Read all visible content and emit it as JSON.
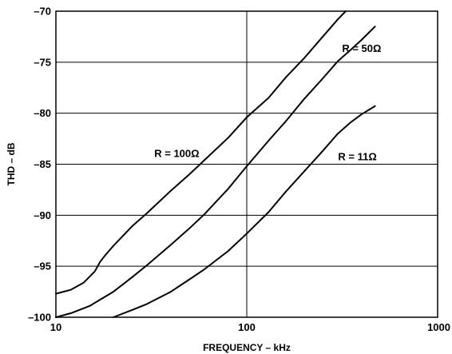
{
  "chart_data": {
    "type": "line",
    "xlabel": "FREQUENCY – kHz",
    "ylabel": "THD – dB",
    "xscale": "log",
    "xlim": [
      10,
      1000
    ],
    "ylim": [
      -100,
      -70
    ],
    "x_ticks": [
      10,
      100,
      1000
    ],
    "x_tick_labels": [
      "10",
      "100",
      "1000"
    ],
    "y_ticks": [
      -100,
      -95,
      -90,
      -85,
      -80,
      -75,
      -70
    ],
    "y_tick_labels": [
      "–100",
      "–95",
      "–90",
      "–85",
      "–80",
      "–75",
      "–70"
    ],
    "grid": true,
    "series": [
      {
        "name": "R = 100Ω",
        "x": [
          10,
          12,
          14,
          16,
          17,
          18,
          20,
          25,
          30,
          40,
          50,
          60,
          80,
          100,
          130,
          160,
          200,
          250,
          300,
          330
        ],
        "y": [
          -97.7,
          -97.3,
          -96.6,
          -95.5,
          -94.6,
          -94.0,
          -93.0,
          -91.1,
          -89.8,
          -87.6,
          -86.0,
          -84.6,
          -82.4,
          -80.4,
          -78.5,
          -76.5,
          -74.6,
          -72.5,
          -70.8,
          -70.0
        ]
      },
      {
        "name": "R = 50Ω",
        "x": [
          10,
          12,
          15,
          20,
          25,
          30,
          40,
          50,
          60,
          80,
          100,
          130,
          160,
          200,
          250,
          300,
          350,
          400,
          470
        ],
        "y": [
          -100,
          -99.6,
          -98.9,
          -97.5,
          -96.1,
          -94.9,
          -92.9,
          -91.3,
          -89.9,
          -87.4,
          -85.2,
          -82.7,
          -80.8,
          -78.6,
          -76.6,
          -74.9,
          -73.8,
          -72.8,
          -71.5
        ]
      },
      {
        "name": "R = 11Ω",
        "x": [
          20,
          25,
          30,
          40,
          50,
          60,
          80,
          100,
          130,
          160,
          200,
          250,
          300,
          350,
          400,
          470
        ],
        "y": [
          -100,
          -99.3,
          -98.7,
          -97.5,
          -96.3,
          -95.3,
          -93.5,
          -91.8,
          -89.7,
          -87.7,
          -85.7,
          -83.7,
          -82.0,
          -80.9,
          -80.1,
          -79.3
        ]
      }
    ],
    "annotations": [
      {
        "text": "R = 100Ω",
        "x": 43,
        "y": -84.3
      },
      {
        "text": "R = 50Ω",
        "x": 400,
        "y": -74.0
      },
      {
        "text": "R = 11Ω",
        "x": 380,
        "y": -84.6
      }
    ]
  }
}
